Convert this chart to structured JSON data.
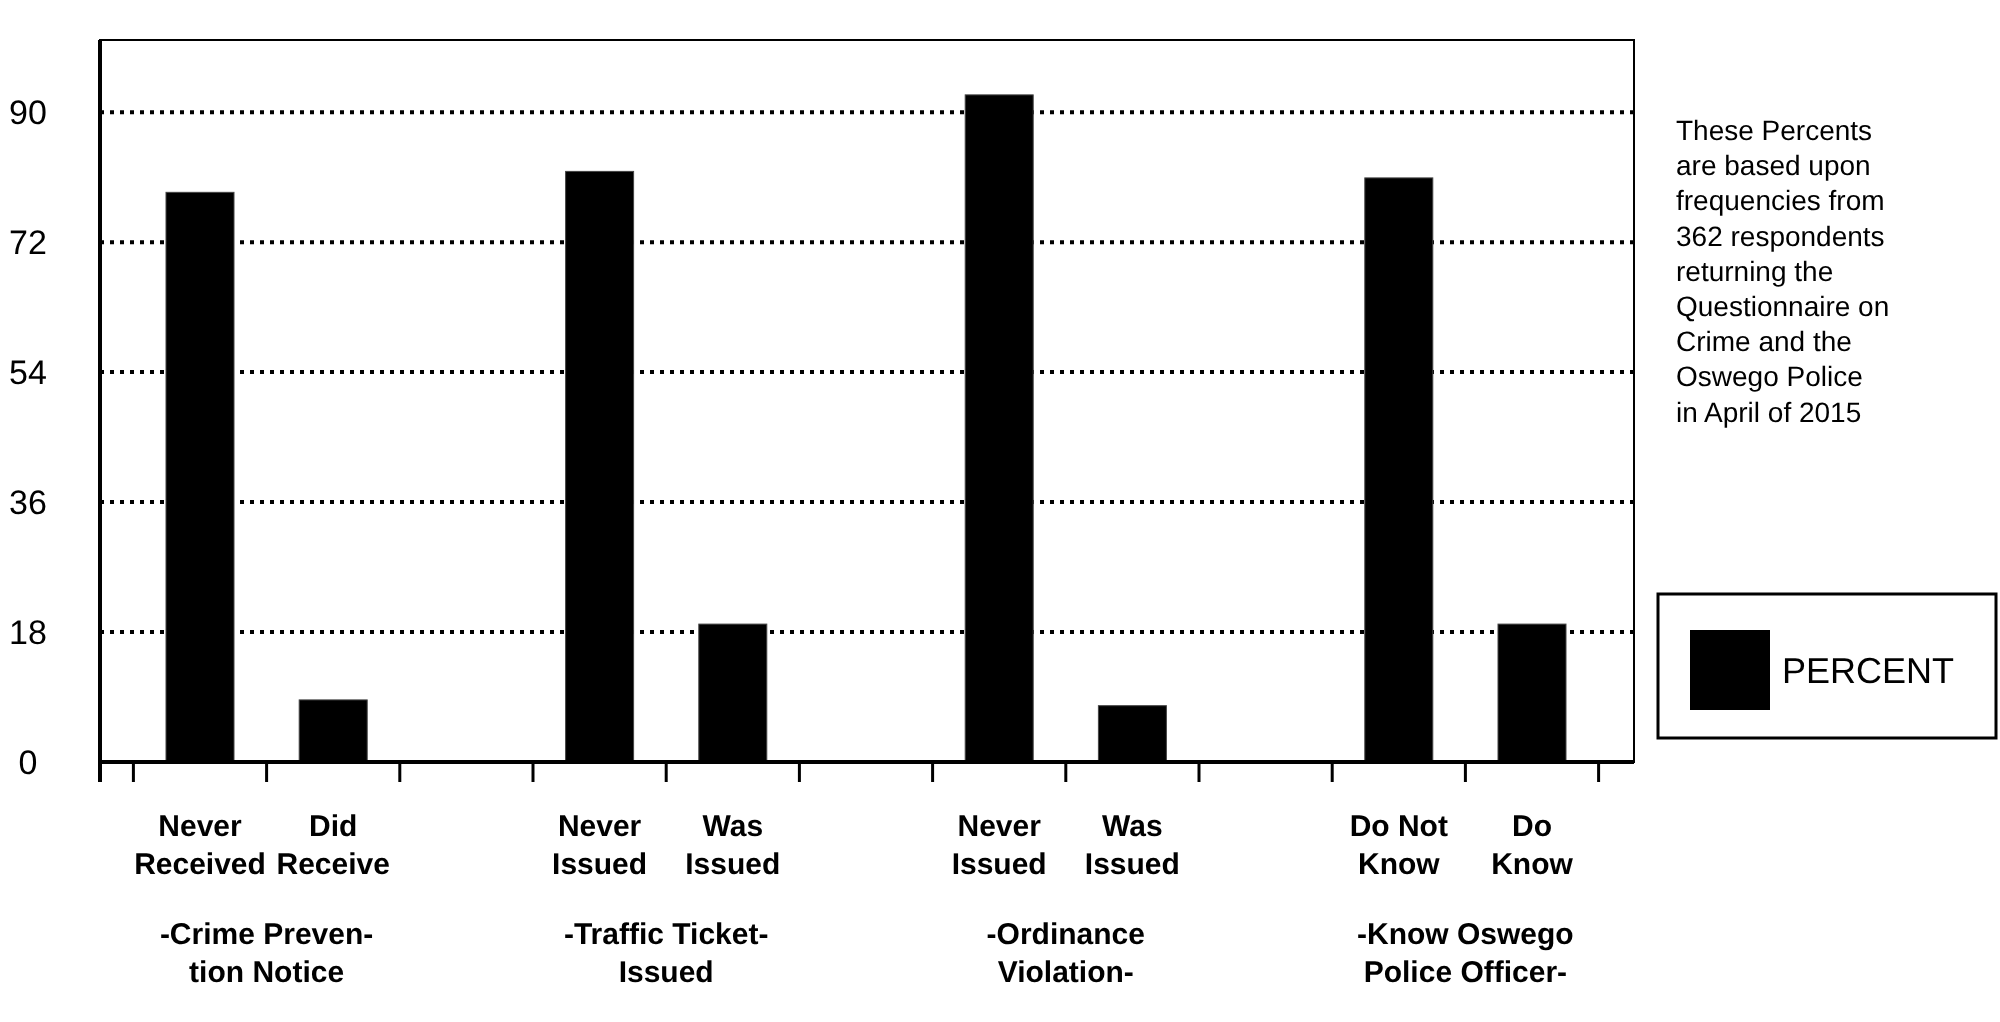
{
  "chart_data": {
    "type": "bar",
    "categories": [
      "Never\nReceived",
      "Did\nReceive",
      null,
      "Never\nIssued",
      "Was\nIssued",
      null,
      "Never\nIssued",
      "Was\nIssued",
      null,
      "Do Not\nKnow",
      "Do\nKnow"
    ],
    "series": [
      {
        "name": "PERCENT",
        "color": "#000000",
        "values": [
          78.9,
          8.6,
          null,
          81.8,
          19.1,
          null,
          92.4,
          7.8,
          null,
          80.9,
          19.1
        ]
      }
    ],
    "ylim": [
      0,
      100
    ],
    "yticks": [
      0,
      18,
      36,
      54,
      72,
      90
    ],
    "grid": "y",
    "legend": "right",
    "annotations": [
      "-Crime Preven-\ntion Notice",
      "-Traffic Ticket-\nIssued",
      "-Ordinance\nViolation-",
      "-Know Oswego\nPolice Officer-",
      "These Percents\nare based upon\nfrequencies from\n362 respondents\nreturning the\nQuestionnaire on\nCrime and the\nOswego Police\nin April of 2015"
    ]
  }
}
